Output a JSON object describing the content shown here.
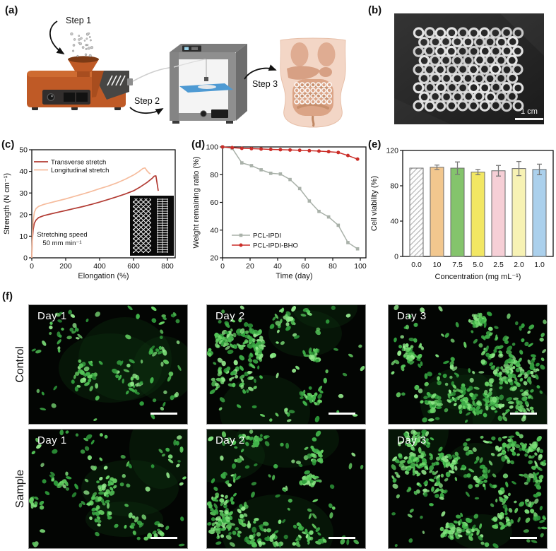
{
  "figure": {
    "panels": {
      "a": {
        "label": "(a)",
        "steps": [
          "Step 1",
          "Step 2",
          "Step 3"
        ]
      },
      "b": {
        "label": "(b)",
        "scale_bar": "1 cm"
      },
      "c": {
        "label": "(c)"
      },
      "d": {
        "label": "(d)"
      },
      "e": {
        "label": "(e)"
      },
      "f": {
        "label": "(f)",
        "row_labels": [
          "Control",
          "Sample"
        ],
        "day_labels": [
          "Day 1",
          "Day 2",
          "Day 3"
        ]
      }
    }
  },
  "chart_data": [
    {
      "panel": "c",
      "type": "line",
      "xlabel": "Elongation (%)",
      "ylabel": "Strength (N cm⁻¹)",
      "xlim": [
        0,
        800
      ],
      "ylim": [
        0,
        50
      ],
      "xticks": [
        0,
        200,
        400,
        600,
        800
      ],
      "yticks": [
        0,
        10,
        20,
        30,
        40,
        50
      ],
      "annotation": [
        "Stretching speed",
        "50 mm min⁻¹"
      ],
      "legend_position": "top-left",
      "grid": false,
      "series": [
        {
          "name": "Transverse stretch",
          "color": "#b23b33",
          "x": [
            0,
            3,
            8,
            15,
            25,
            40,
            70,
            100,
            150,
            200,
            250,
            300,
            350,
            400,
            450,
            500,
            550,
            600,
            640,
            680,
            710,
            722,
            732,
            740,
            746
          ],
          "y": [
            0,
            8,
            13,
            16,
            17.5,
            18.6,
            19.5,
            20.1,
            21,
            21.9,
            22.8,
            23.7,
            24.7,
            25.8,
            27,
            28.2,
            29.5,
            31,
            32.8,
            34.9,
            36.8,
            37.8,
            37.9,
            34,
            31
          ]
        },
        {
          "name": "Longitudinal stretch",
          "color": "#f6bc9d",
          "x": [
            0,
            3,
            8,
            15,
            25,
            40,
            70,
            100,
            150,
            200,
            250,
            300,
            350,
            400,
            450,
            500,
            550,
            600,
            630,
            655,
            668,
            680,
            692,
            700
          ],
          "y": [
            0,
            10,
            17,
            21,
            22.8,
            23.8,
            24.7,
            25.3,
            26.3,
            27.3,
            28.4,
            29.5,
            30.7,
            32,
            33.2,
            34.6,
            36.3,
            38.3,
            39.8,
            41.3,
            41.6,
            40.2,
            39.2,
            38.8
          ]
        }
      ]
    },
    {
      "panel": "d",
      "type": "line",
      "xlabel": "Time (day)",
      "ylabel": "Weight remaining ratio (%)",
      "xlim": [
        0,
        100
      ],
      "ylim": [
        20,
        100
      ],
      "xticks": [
        0,
        20,
        40,
        60,
        80,
        100
      ],
      "yticks": [
        20,
        40,
        60,
        80,
        100
      ],
      "legend_position": "bottom-left",
      "grid": false,
      "series": [
        {
          "name": "PCL-IPDI",
          "color": "#a9b1a9",
          "marker": "square",
          "x": [
            0,
            7,
            14,
            21,
            28,
            35,
            42,
            49,
            56,
            63,
            70,
            77,
            84,
            91,
            98
          ],
          "y": [
            100,
            99,
            88.5,
            86.5,
            83.5,
            81,
            80.5,
            76.5,
            70,
            61,
            53.5,
            49.5,
            43.5,
            31,
            26.5
          ]
        },
        {
          "name": "PCL-IPDI-BHO",
          "color": "#cb2d28",
          "marker": "circle",
          "x": [
            0,
            7,
            14,
            21,
            28,
            35,
            42,
            49,
            56,
            63,
            70,
            77,
            84,
            91,
            98
          ],
          "y": [
            100,
            99.5,
            99,
            98.8,
            98.5,
            98.2,
            98,
            97.8,
            97.6,
            97.3,
            97,
            96.6,
            96,
            93.8,
            91.2
          ]
        }
      ]
    },
    {
      "panel": "e",
      "type": "bar",
      "xlabel": "Concentration (mg mL⁻¹)",
      "ylabel": "Cell viability (%)",
      "ylim": [
        0,
        120
      ],
      "yticks": [
        0,
        40,
        80,
        120
      ],
      "categories": [
        "0.0",
        "10",
        "7.5",
        "5.0",
        "2.5",
        "2.0",
        "1.0"
      ],
      "values": [
        100,
        101,
        100,
        95.5,
        97,
        99.5,
        98.5
      ],
      "errors": [
        0,
        2.5,
        7,
        3,
        6,
        8,
        6
      ],
      "bar_colors": [
        "hatch",
        "#f2c78e",
        "#84c46c",
        "#f2e763",
        "#f6cfd6",
        "#f7f2b4",
        "#abd0ec"
      ],
      "grid": false
    }
  ]
}
